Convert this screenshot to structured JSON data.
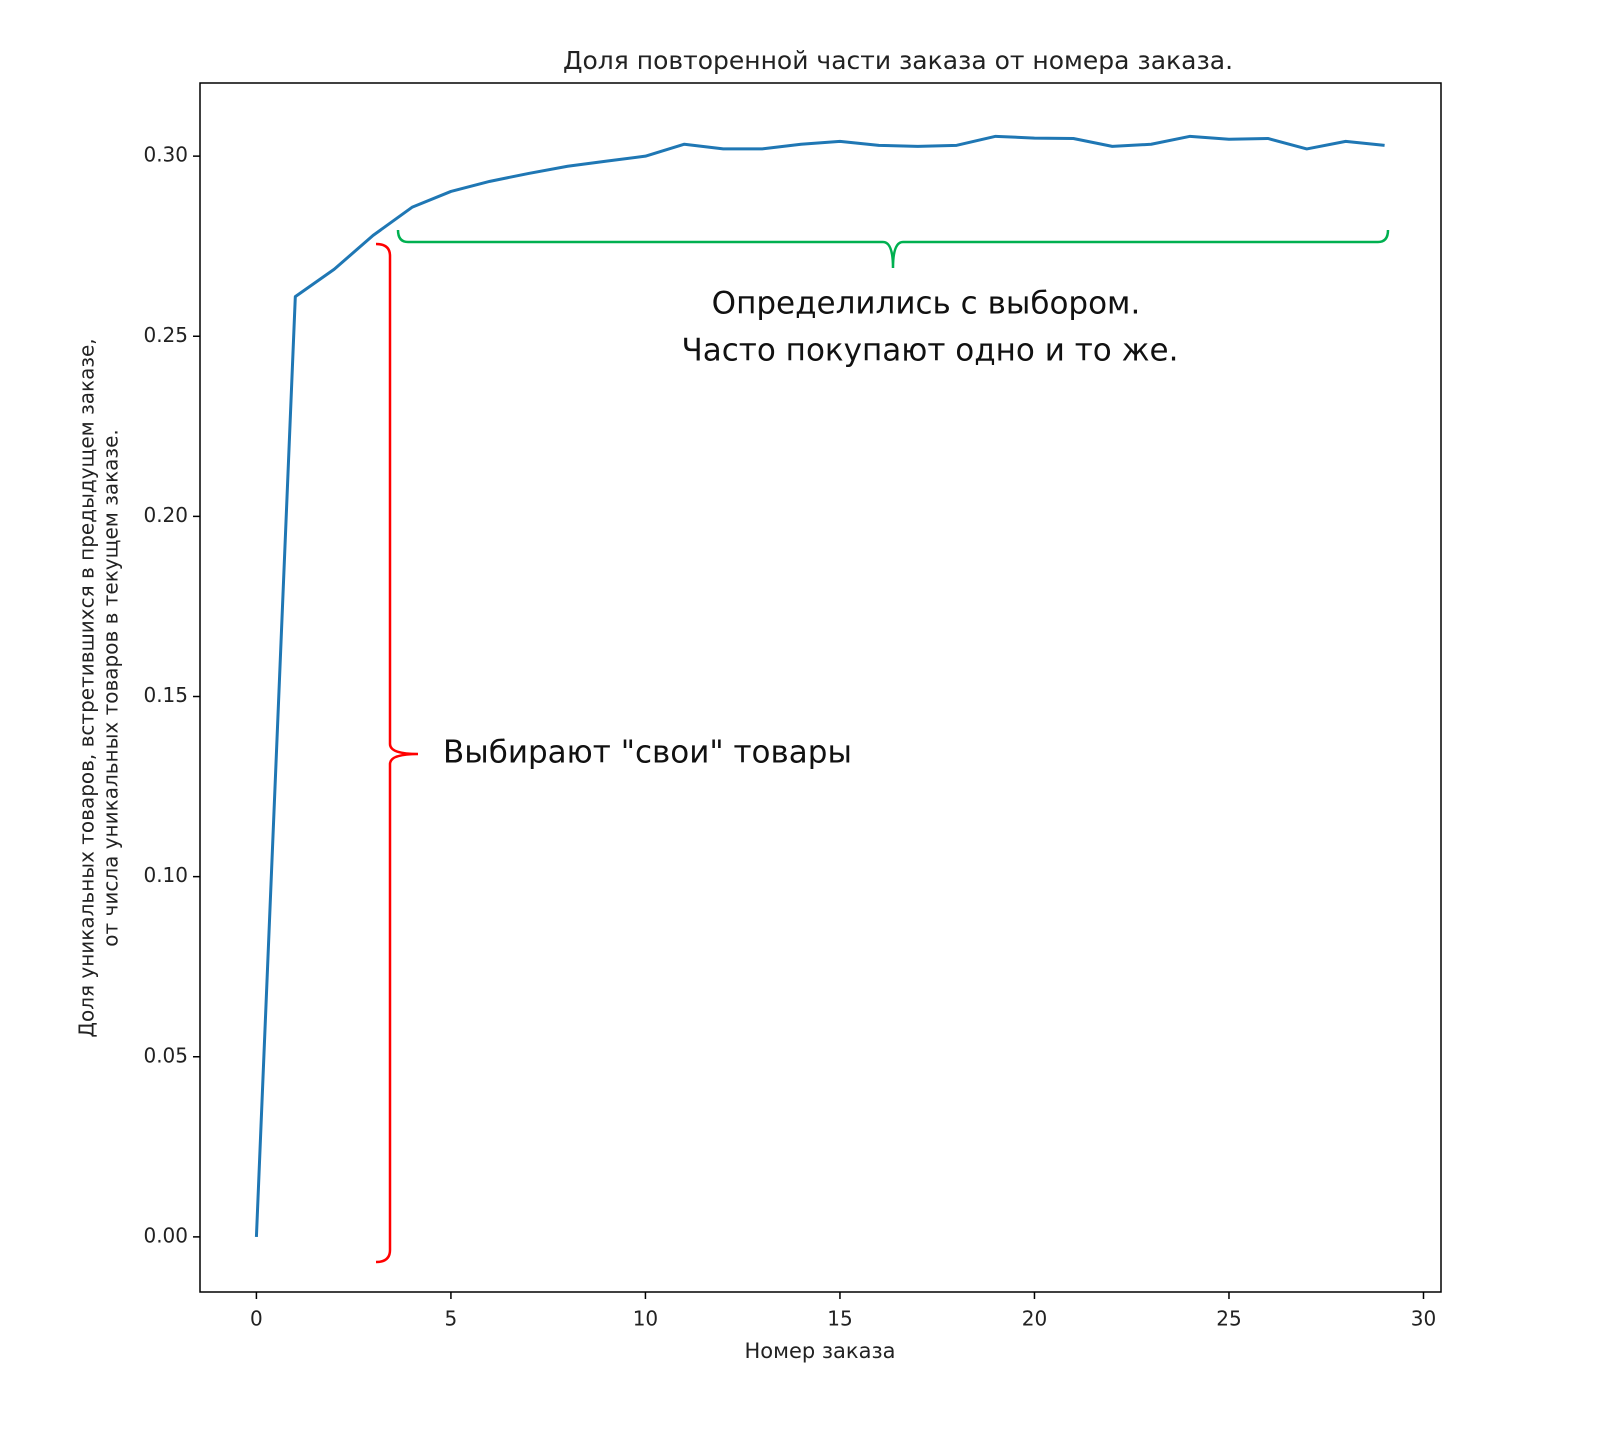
{
  "chart_data": {
    "type": "line",
    "title": "Доля повторенной части заказа от номера заказа.",
    "xlabel": "Номер заказа",
    "ylabel": [
      "Доля уникальных товаров, встретившихся в предыдущем заказе,",
      "от числа уникальных товаров в текущем заказе."
    ],
    "x": [
      0,
      1,
      2,
      3,
      4,
      5,
      6,
      7,
      8,
      9,
      10,
      11,
      12,
      13,
      14,
      15,
      16,
      17,
      18,
      19,
      20,
      21,
      22,
      23,
      24,
      25,
      26,
      27,
      28,
      29
    ],
    "series": [
      {
        "color": "#1f77b4",
        "values": [
          0,
          0.261,
          0.2686,
          0.278,
          0.2858,
          0.2902,
          0.293,
          0.2952,
          0.2972,
          0.2986,
          0.3,
          0.3033,
          0.302,
          0.302,
          0.3033,
          0.3041,
          0.303,
          0.3027,
          0.303,
          0.3055,
          0.305,
          0.3049,
          0.3027,
          0.3033,
          0.3055,
          0.3047,
          0.3049,
          0.302,
          0.3041,
          0.303
        ]
      }
    ],
    "xlim": [
      -1.45,
      30.45
    ],
    "ylim": [
      -0.0153,
      0.3203
    ],
    "xticks": [
      0,
      5,
      10,
      15,
      20,
      25,
      30
    ],
    "yticks": [
      {
        "value": 0,
        "label": "0.00"
      },
      0.05,
      {
        "value": 0.1,
        "label": "0.10"
      },
      0.15,
      {
        "value": 0.2,
        "label": "0.20"
      },
      0.25,
      {
        "value": 0.3,
        "label": "0.30"
      }
    ],
    "grid": false,
    "annotations": [
      {
        "lines": [
          "Определились с выбором.",
          "Часто покупают одно и то же."
        ],
        "color": "#00b050"
      },
      {
        "lines": [
          "Выбирают \"свои\" товары"
        ],
        "color": "#ff0000"
      }
    ]
  }
}
